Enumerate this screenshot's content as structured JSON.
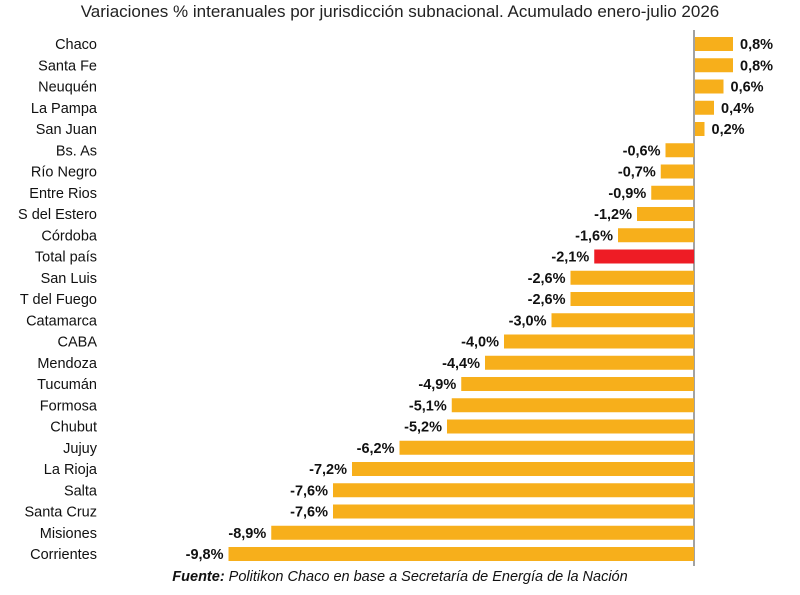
{
  "chart_data": {
    "type": "bar",
    "orientation": "horizontal",
    "title": "Variaciones % interanuales por jurisdicción subnacional. Acumulado enero-julio 2026",
    "categories": [
      "Chaco",
      "Santa Fe",
      "Neuquén",
      "La Pampa",
      "San Juan",
      "Bs. As",
      "Río Negro",
      "Entre Rios",
      "S del Estero",
      "Córdoba",
      "Total país",
      "San Luis",
      "T del Fuego",
      "Catamarca",
      "CABA",
      "Mendoza",
      "Tucumán",
      "Formosa",
      "Chubut",
      "Jujuy",
      "La Rioja",
      "Salta",
      "Santa Cruz",
      "Misiones",
      "Corrientes"
    ],
    "values": [
      0.8,
      0.8,
      0.6,
      0.4,
      0.2,
      -0.6,
      -0.7,
      -0.9,
      -1.2,
      -1.6,
      -2.1,
      -2.6,
      -2.6,
      -3.0,
      -4.0,
      -4.4,
      -4.9,
      -5.1,
      -5.2,
      -6.2,
      -7.2,
      -7.6,
      -7.6,
      -8.9,
      -9.8
    ],
    "value_labels": [
      "0,8%",
      "0,8%",
      "0,6%",
      "0,4%",
      "0,2%",
      "-0,6%",
      "-0,7%",
      "-0,9%",
      "-1,2%",
      "-1,6%",
      "-2,1%",
      "-2,6%",
      "-2,6%",
      "-3,0%",
      "-4,0%",
      "-4,4%",
      "-4,9%",
      "-5,1%",
      "-5,2%",
      "-6,2%",
      "-7,2%",
      "-7,6%",
      "-7,6%",
      "-8,9%",
      "-9,8%"
    ],
    "highlight_category": "Total país",
    "bar_color": "#F7AF1B",
    "highlight_color": "#EE1C25",
    "grid": false,
    "legend": "none"
  },
  "source": {
    "label": "Fuente:",
    "text": " Politikon Chaco en base a Secretaría de Energía de la Nación"
  }
}
